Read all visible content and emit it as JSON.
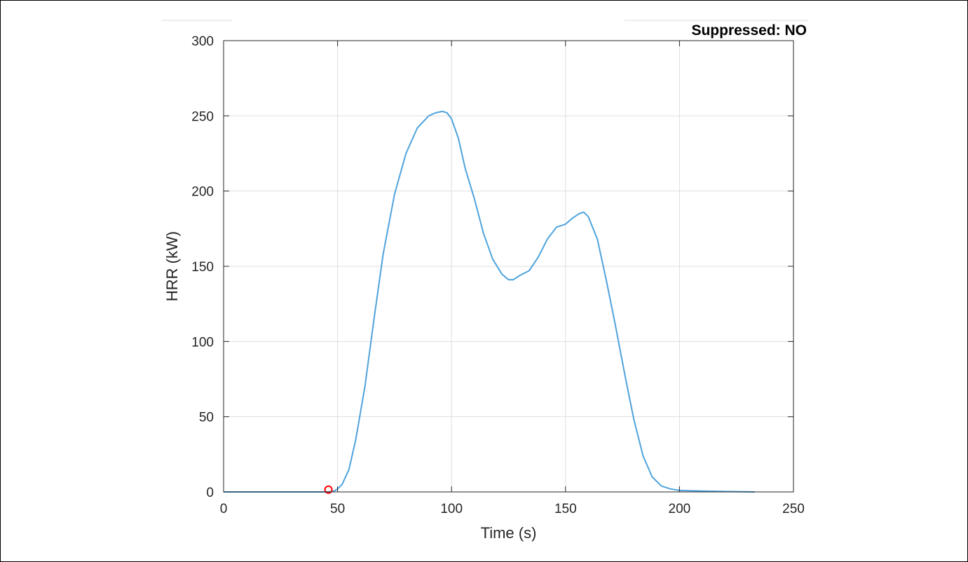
{
  "status": {
    "text": "Suppressed: NO"
  },
  "chart_data": {
    "type": "line",
    "title": "",
    "xlabel": "Time (s)",
    "ylabel": "HRR (kW)",
    "xlim": [
      0,
      250
    ],
    "ylim": [
      0,
      300
    ],
    "xticks": [
      0,
      50,
      100,
      150,
      200,
      250
    ],
    "yticks": [
      0,
      50,
      100,
      150,
      200,
      250,
      300
    ],
    "grid": true,
    "series": [
      {
        "color": "#4fa3dc",
        "x": [
          0,
          10,
          20,
          30,
          40,
          45,
          48,
          50,
          52,
          55,
          58,
          62,
          66,
          70,
          75,
          80,
          85,
          90,
          93,
          96,
          98,
          100,
          103,
          106,
          110,
          114,
          118,
          122,
          125,
          127,
          130,
          134,
          138,
          142,
          146,
          150,
          153,
          156,
          158,
          160,
          164,
          168,
          172,
          176,
          180,
          184,
          188,
          192,
          196,
          200,
          210,
          220,
          233
        ],
        "y": [
          0,
          0,
          0,
          0,
          0,
          0,
          0.3,
          2,
          5,
          15,
          35,
          70,
          115,
          158,
          198,
          225,
          242,
          250,
          252,
          253,
          252,
          248,
          235,
          215,
          195,
          172,
          155,
          145,
          141,
          141,
          144,
          147,
          156,
          168,
          176,
          178,
          182,
          185,
          186,
          183,
          168,
          140,
          110,
          78,
          48,
          24,
          10,
          4,
          2,
          1,
          0.6,
          0.3,
          0
        ]
      }
    ],
    "markers": [
      {
        "x": 46,
        "y": 1.5,
        "color": "#ff0000",
        "shape": "circle"
      }
    ]
  }
}
